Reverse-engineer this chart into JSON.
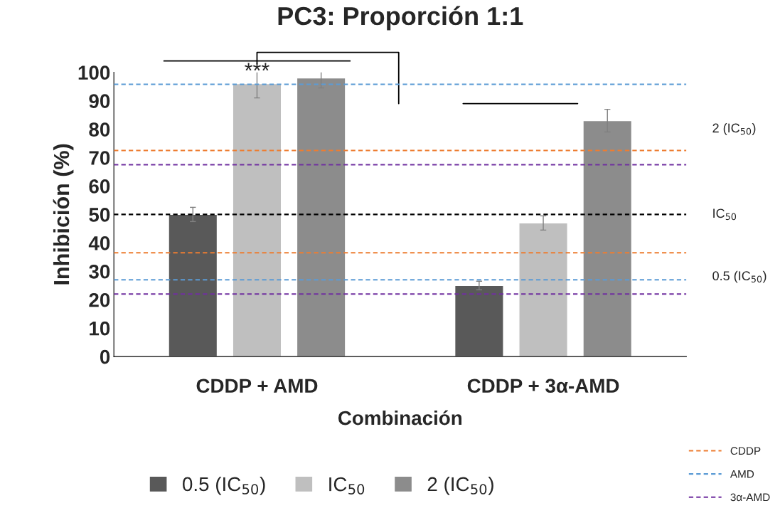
{
  "chart_data": {
    "type": "bar",
    "title": "PC3: Proporción 1:1",
    "xlabel": "Combinación",
    "ylabel": "Inhibición (%)",
    "categories": [
      "CDDP + AMD",
      "CDDP + 3α-AMD"
    ],
    "series": [
      {
        "name": "0.5 (IC$_{50}$)",
        "color": "#595959",
        "values": [
          50,
          25
        ],
        "errors": [
          2.5,
          1.5
        ]
      },
      {
        "name": "IC$_{50}$",
        "color": "#bfbfbf",
        "values": [
          96,
          47
        ],
        "errors": [
          5,
          2.5
        ]
      },
      {
        "name": "2 (IC$_{50}$)",
        "color": "#8c8c8c",
        "values": [
          98,
          83
        ],
        "errors": [
          3.5,
          4
        ]
      }
    ],
    "ylim": [
      0,
      100
    ],
    "yticks": [
      0,
      10,
      20,
      30,
      40,
      50,
      60,
      70,
      80,
      90,
      100
    ],
    "grid": false,
    "legend": "bottom",
    "ref_lines": [
      {
        "axis": "y",
        "value": 72.5,
        "label": "CDDP",
        "color": "#ed7d31",
        "line_style": "dashed"
      },
      {
        "axis": "y",
        "value": 36.5,
        "color": "#ed7d31",
        "line_style": "dashed"
      },
      {
        "axis": "y",
        "value": 95.8,
        "label": "AMD",
        "color": "#5b9bd5",
        "line_style": "dashed"
      },
      {
        "axis": "y",
        "value": 27,
        "color": "#5b9bd5",
        "line_style": "dashed"
      },
      {
        "axis": "y",
        "value": 67.5,
        "label": "3α-AMD",
        "color": "#7030a0",
        "line_style": "dashed"
      },
      {
        "axis": "y",
        "value": 22,
        "color": "#7030a0",
        "line_style": "dashed"
      },
      {
        "axis": "y",
        "value": 50,
        "color": "#000000",
        "line_style": "dashed"
      }
    ],
    "annotations": [
      {
        "text": "***",
        "x": "CDDP + AMD",
        "y": 100
      },
      "2 (IC$_{50}$)",
      "IC$_{50}$",
      "0.5 (IC$_{50}$)"
    ]
  }
}
